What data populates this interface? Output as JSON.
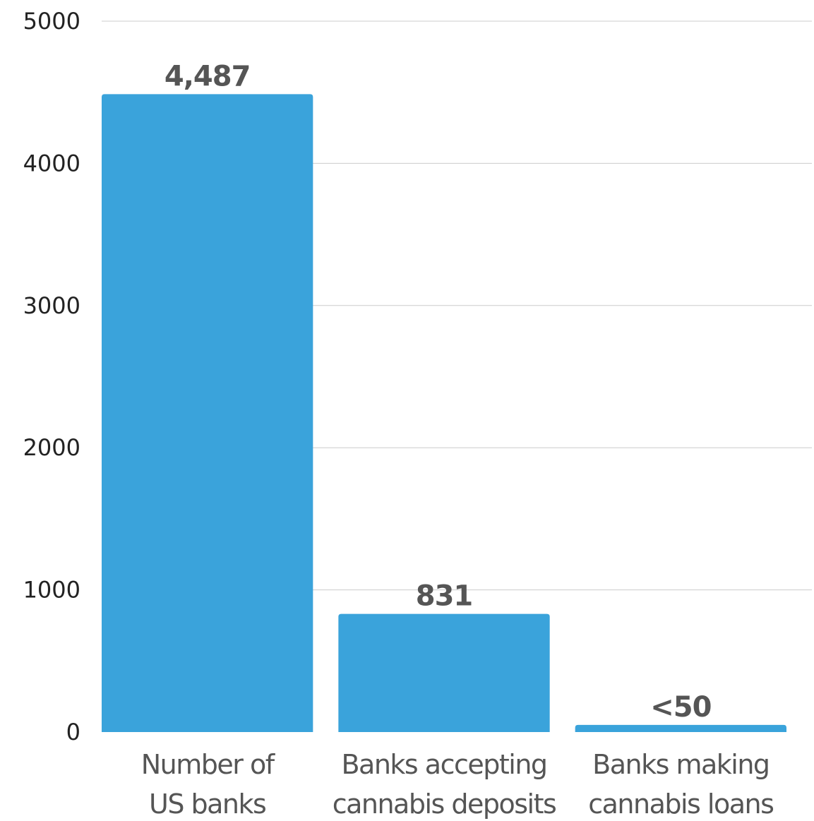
{
  "chart_data": {
    "type": "bar",
    "categories": [
      [
        "Number of",
        "US banks"
      ],
      [
        "Banks accepting",
        "cannabis deposits"
      ],
      [
        "Banks making",
        "cannabis loans"
      ]
    ],
    "values": [
      4487,
      831,
      50
    ],
    "data_labels": [
      "4,487",
      "831",
      "<50"
    ],
    "ylim": [
      0,
      5000
    ],
    "yticks": [
      0,
      1000,
      2000,
      3000,
      4000,
      5000
    ],
    "ytick_labels": [
      "0",
      "1000",
      "2000",
      "3000",
      "4000",
      "5000"
    ],
    "grid": true,
    "bar_color": "#3aa3db",
    "title": "",
    "xlabel": "",
    "ylabel": ""
  }
}
